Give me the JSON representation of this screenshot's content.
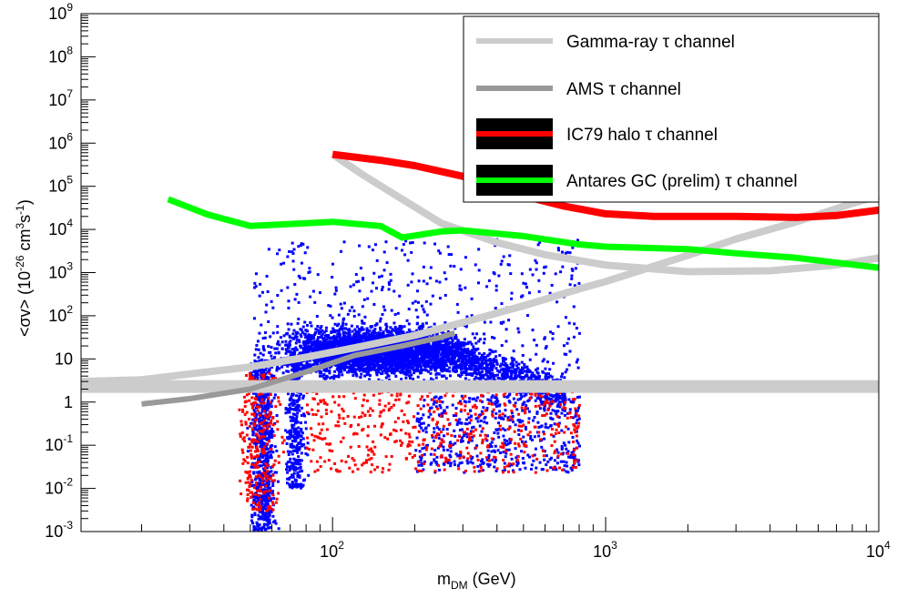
{
  "chart_data": {
    "type": "scatter",
    "xlabel": "m_DM (GeV)",
    "xlabel_main": "m",
    "xlabel_sub": "DM",
    "xlabel_rest": " (GeV)",
    "ylabel": "<σv> (10^-26 cm^3s^-1)",
    "x_scale": "log",
    "y_scale": "log",
    "xlim": [
      12,
      10000
    ],
    "ylim": [
      0.001,
      1000000000
    ],
    "x_ticks": [
      {
        "value": 100,
        "base": "10",
        "exp": "2"
      },
      {
        "value": 1000,
        "base": "10",
        "exp": "3"
      },
      {
        "value": 10000,
        "base": "10",
        "exp": "4"
      }
    ],
    "y_ticks": [
      {
        "value": 0.001,
        "base": "10",
        "exp": "-3"
      },
      {
        "value": 0.01,
        "base": "10",
        "exp": "-2"
      },
      {
        "value": 0.1,
        "base": "10",
        "exp": "-1"
      },
      {
        "value": 1,
        "base": "1",
        "exp": ""
      },
      {
        "value": 10,
        "base": "10",
        "exp": ""
      },
      {
        "value": 100,
        "base": "10",
        "exp": "2"
      },
      {
        "value": 1000,
        "base": "10",
        "exp": "3"
      },
      {
        "value": 10000,
        "base": "10",
        "exp": "4"
      },
      {
        "value": 100000,
        "base": "10",
        "exp": "5"
      },
      {
        "value": 1000000,
        "base": "10",
        "exp": "6"
      },
      {
        "value": 10000000,
        "base": "10",
        "exp": "7"
      },
      {
        "value": 100000000,
        "base": "10",
        "exp": "8"
      },
      {
        "value": 1000000000,
        "base": "10",
        "exp": "9"
      }
    ],
    "legend": {
      "placement": "top-right",
      "entries": [
        {
          "label": "Gamma-ray τ channel",
          "color": "#cccccc",
          "style": "line"
        },
        {
          "label": "AMS τ channel",
          "color": "#999999",
          "style": "line"
        },
        {
          "label": "IC79 halo τ channel",
          "color": "#ff0000",
          "style": "band",
          "band_color": "#000000"
        },
        {
          "label": "Antares GC (prelim) τ channel",
          "color": "#00ff00",
          "style": "band",
          "band_color": "#000000"
        }
      ]
    },
    "series": [
      {
        "name": "Gamma-ray τ channel (dSph)",
        "color": "#cccccc",
        "points": [
          [
            12,
            3.0
          ],
          [
            20,
            3.3
          ],
          [
            30,
            4.5
          ],
          [
            50,
            6.5
          ],
          [
            80,
            11
          ],
          [
            120,
            18
          ],
          [
            200,
            35
          ],
          [
            300,
            70
          ],
          [
            500,
            170
          ],
          [
            800,
            420
          ],
          [
            1000,
            620
          ],
          [
            2000,
            2500
          ],
          [
            3000,
            6000
          ],
          [
            5000,
            15000
          ],
          [
            8000,
            40000
          ],
          [
            10000,
            60000
          ]
        ]
      },
      {
        "name": "Gamma-ray τ channel (GC)",
        "color": "#cccccc",
        "points": [
          [
            100,
            550000
          ],
          [
            130,
            180000
          ],
          [
            180,
            50000
          ],
          [
            250,
            14000
          ],
          [
            400,
            5000
          ],
          [
            600,
            2600
          ],
          [
            1000,
            1500
          ],
          [
            2000,
            1050
          ],
          [
            4000,
            1100
          ],
          [
            7000,
            1500
          ],
          [
            10000,
            2200
          ]
        ]
      },
      {
        "name": "Gamma-ray τ channel (flat)",
        "color": "#cccccc",
        "points": [
          [
            12,
            2.3
          ],
          [
            10000,
            2.3
          ]
        ]
      },
      {
        "name": "AMS τ channel",
        "color": "#999999",
        "points": [
          [
            20,
            0.9
          ],
          [
            30,
            1.2
          ],
          [
            50,
            2.0
          ],
          [
            80,
            5.0
          ],
          [
            120,
            12
          ],
          [
            180,
            20
          ],
          [
            250,
            32
          ],
          [
            280,
            40
          ]
        ]
      },
      {
        "name": "IC79 halo τ channel",
        "color": "#ff0000",
        "points": [
          [
            100,
            550000
          ],
          [
            150,
            400000
          ],
          [
            200,
            300000
          ],
          [
            300,
            170000
          ],
          [
            500,
            60000
          ],
          [
            700,
            35000
          ],
          [
            1000,
            23000
          ],
          [
            1500,
            20000
          ],
          [
            2000,
            20000
          ],
          [
            3000,
            20000
          ],
          [
            5000,
            19000
          ],
          [
            7000,
            21000
          ],
          [
            10000,
            28000
          ]
        ]
      },
      {
        "name": "Antares GC (prelim) τ channel",
        "color": "#00ff00",
        "points": [
          [
            25,
            50000
          ],
          [
            35,
            22000
          ],
          [
            50,
            12000
          ],
          [
            80,
            14000
          ],
          [
            100,
            15000
          ],
          [
            150,
            12000
          ],
          [
            180,
            6500
          ],
          [
            250,
            9000
          ],
          [
            300,
            9500
          ],
          [
            500,
            7000
          ],
          [
            800,
            4500
          ],
          [
            1000,
            4000
          ],
          [
            2000,
            3500
          ],
          [
            3000,
            2800
          ],
          [
            5000,
            2200
          ],
          [
            10000,
            1300
          ]
        ]
      }
    ],
    "scatter_clusters": [
      {
        "name": "blue models",
        "color": "#0000ff",
        "description": "dense scan points"
      },
      {
        "name": "red models",
        "color": "#ff0000",
        "description": "scan points"
      }
    ]
  }
}
